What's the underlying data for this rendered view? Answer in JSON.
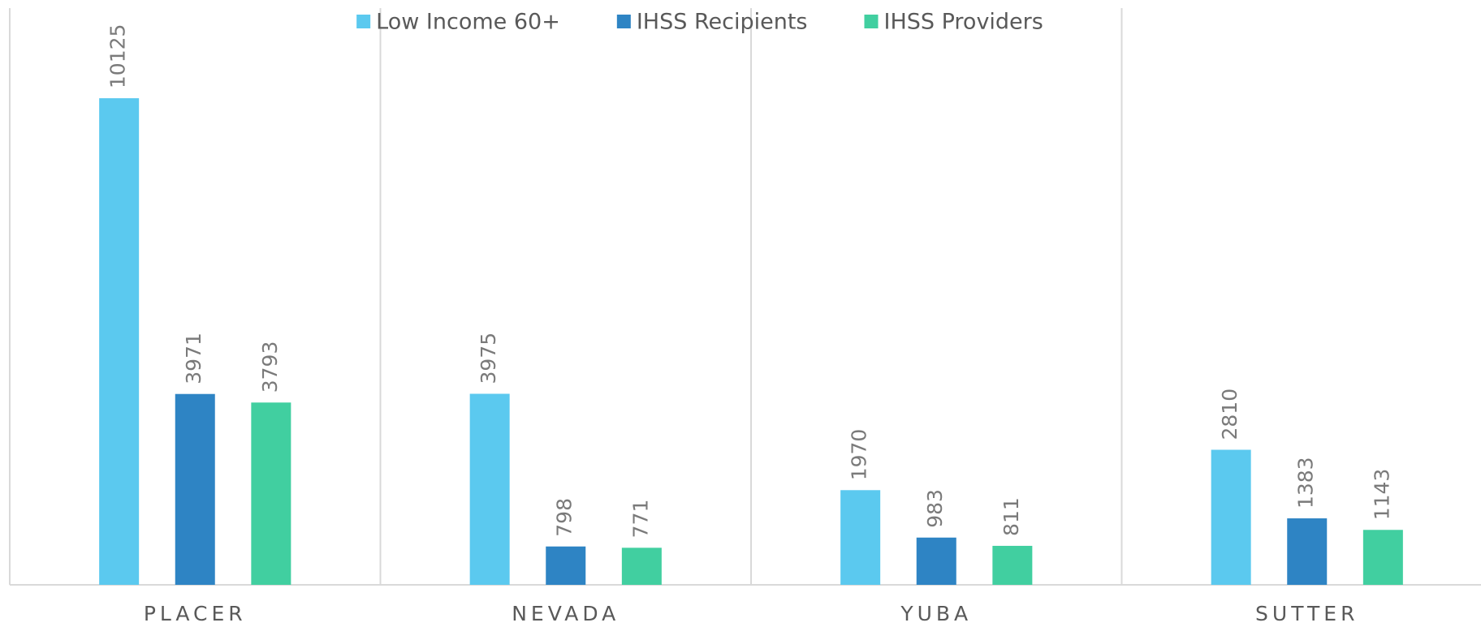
{
  "chart_data": {
    "type": "bar",
    "categories": [
      "PLACER",
      "NEVADA",
      "YUBA",
      "SUTTER"
    ],
    "series": [
      {
        "name": "Low Income 60+",
        "color": "#5bc9ef",
        "values": [
          10125,
          3975,
          1970,
          2810
        ]
      },
      {
        "name": "IHSS Recipients",
        "color": "#2e84c4",
        "values": [
          3971,
          798,
          983,
          1383
        ]
      },
      {
        "name": "IHSS Providers",
        "color": "#41cfa0",
        "values": [
          3793,
          771,
          811,
          1143
        ]
      }
    ],
    "ylim": [
      0,
      12000
    ],
    "legend": "top",
    "data_labels": true
  }
}
